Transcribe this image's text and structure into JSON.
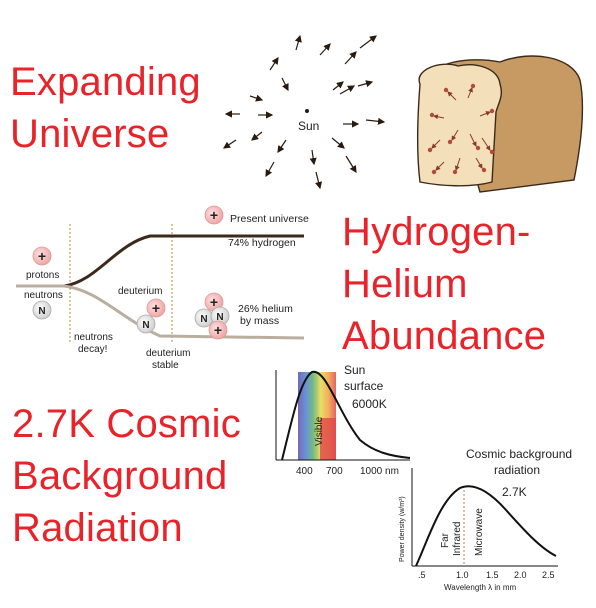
{
  "titles": {
    "expanding": [
      "Expanding",
      "Universe"
    ],
    "hydrogen": [
      "Hydrogen-",
      "Helium",
      "Abundance"
    ],
    "cmb": [
      "2.7K Cosmic",
      "Background",
      "Radiation"
    ]
  },
  "sun_diagram": {
    "label": "Sun"
  },
  "nucleosynthesis": {
    "labels": {
      "present": "Present universe",
      "hydrogen": "74% hydrogen",
      "protons": "protons",
      "neutrons": "neutrons",
      "deuterium": "deuterium",
      "helium_line1": "26% helium",
      "helium_line2": "by mass",
      "neutrons_decay_line1": "neutrons",
      "neutrons_decay_line2": "decay!",
      "deuterium_stable_line1": "deuterium",
      "deuterium_stable_line2": "stable",
      "plus_symbol": "+",
      "neutron_symbol": "N"
    }
  },
  "sun_spectrum": {
    "label_line1": "Sun",
    "label_line2": "surface",
    "temperature": "6000K",
    "band_label": "Visible",
    "ticks": [
      "400",
      "700",
      "1000 nm"
    ]
  },
  "cmb_spectrum": {
    "label_line1": "Cosmic background",
    "label_line2": "radiation",
    "temperature": "2.7K",
    "band_far": "Far",
    "band_infrared": "Infrared",
    "band_microwave": "Microwave",
    "ylabel": "Power density (w/m³)",
    "xlabel": "Wavelength λ in mm",
    "ticks": [
      ".5",
      "1.0",
      "1.5",
      "2.0",
      "2.5"
    ]
  },
  "colors": {
    "title_red": "#e8232a",
    "bread_crust": "#c79a63",
    "bread_crumb": "#f3dfb9",
    "proton_pink": "#f4b6b6",
    "curve_dark": "#3b2a1a"
  }
}
